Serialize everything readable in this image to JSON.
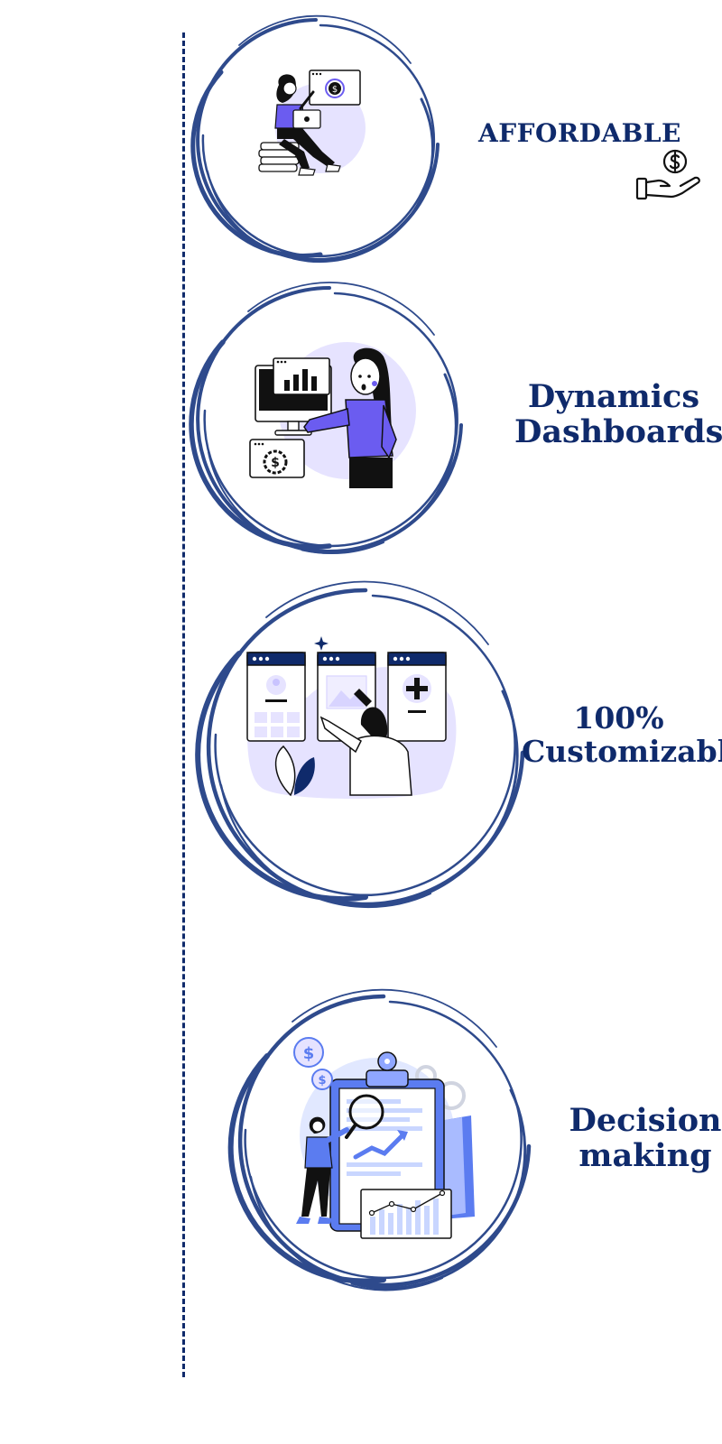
{
  "theme": {
    "accent": "#0f2a6b",
    "ring": "#2e4a8c",
    "lavender": "#e6e3ff",
    "purple": "#6b5cf0",
    "blue": "#5b7cf0",
    "light_blue": "#c9d6ff"
  },
  "features": [
    {
      "lines": [
        "AFFORDABLE"
      ],
      "icon": "money-hand-icon",
      "illustration": "woman-laptop-coins-illustration"
    },
    {
      "lines": [
        "Dynamics",
        "Dashboards"
      ],
      "illustration": "woman-dashboard-monitor-illustration"
    },
    {
      "lines": [
        "100%",
        "Customizable"
      ],
      "illustration": "woman-custom-panels-illustration"
    },
    {
      "lines": [
        "Decision",
        "making"
      ],
      "illustration": "woman-analysis-clipboard-illustration"
    }
  ]
}
